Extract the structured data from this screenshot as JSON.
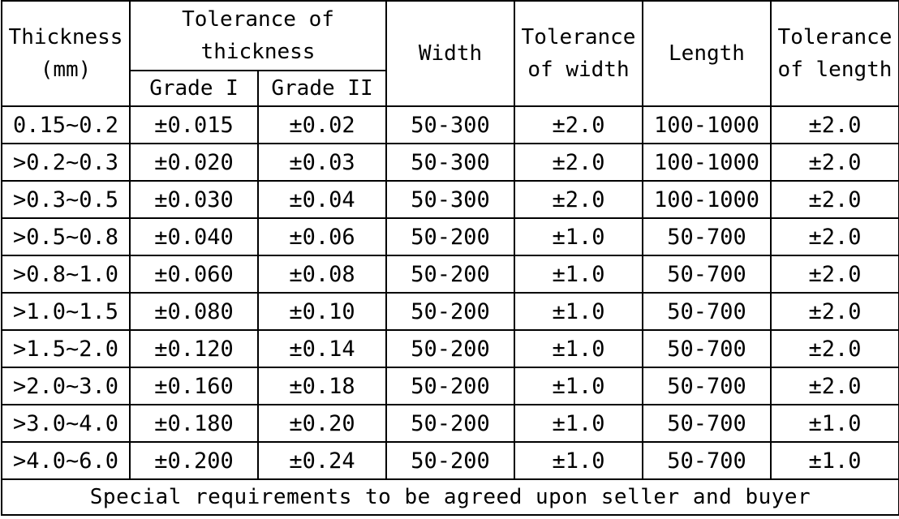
{
  "table": {
    "headers": {
      "thickness": "Thickness (mm)",
      "tolerance_thickness": "Tolerance of thickness",
      "grade_1": "Grade I",
      "grade_2": "Grade II",
      "width": "Width",
      "tolerance_width": "Tolerance of width",
      "length": "Length",
      "tolerance_length": "Tolerance of length"
    },
    "rows": [
      [
        "0.15~0.2",
        "±0.015",
        "±0.02",
        "50-300",
        "±2.0",
        "100-1000",
        "±2.0"
      ],
      [
        ">0.2~0.3",
        "±0.020",
        "±0.03",
        "50-300",
        "±2.0",
        "100-1000",
        "±2.0"
      ],
      [
        ">0.3~0.5",
        "±0.030",
        "±0.04",
        "50-300",
        "±2.0",
        "100-1000",
        "±2.0"
      ],
      [
        ">0.5~0.8",
        "±0.040",
        "±0.06",
        "50-200",
        "±1.0",
        "50-700",
        "±2.0"
      ],
      [
        ">0.8~1.0",
        "±0.060",
        "±0.08",
        "50-200",
        "±1.0",
        "50-700",
        "±2.0"
      ],
      [
        ">1.0~1.5",
        "±0.080",
        "±0.10",
        "50-200",
        "±1.0",
        "50-700",
        "±2.0"
      ],
      [
        ">1.5~2.0",
        "±0.120",
        "±0.14",
        "50-200",
        "±1.0",
        "50-700",
        "±2.0"
      ],
      [
        ">2.0~3.0",
        "±0.160",
        "±0.18",
        "50-200",
        "±1.0",
        "50-700",
        "±2.0"
      ],
      [
        ">3.0~4.0",
        "±0.180",
        "±0.20",
        "50-200",
        "±1.0",
        "50-700",
        "±1.0"
      ],
      [
        ">4.0~6.0",
        "±0.200",
        "±0.24",
        "50-200",
        "±1.0",
        "50-700",
        "±1.0"
      ]
    ],
    "note": "Special requirements to be agreed upon seller and buyer"
  }
}
